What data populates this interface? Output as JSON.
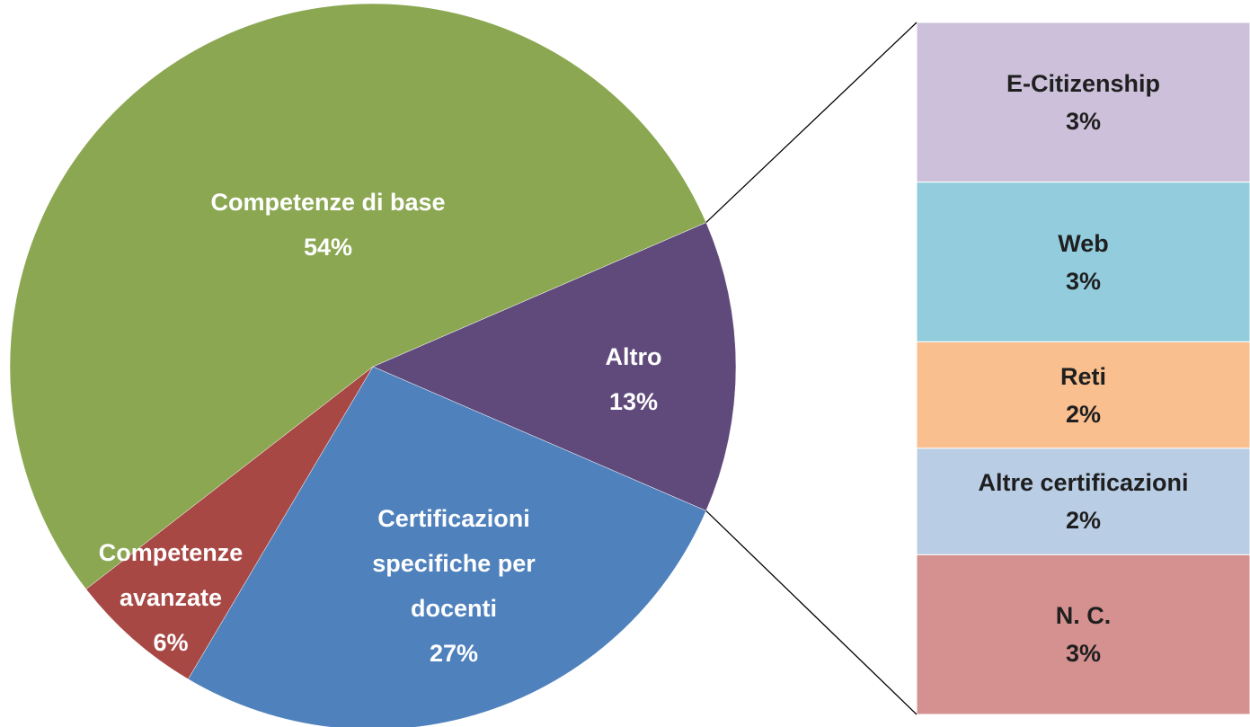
{
  "chart_data": {
    "type": "pie-of-bar",
    "categories": [
      "Altro",
      "Certificazioni specifiche per docenti",
      "Competenze avanzate",
      "Competenze di base"
    ],
    "values": [
      13,
      27,
      6,
      54
    ],
    "value_labels": [
      "13%",
      "27%",
      "6%",
      "54%"
    ],
    "colors": [
      "#604a7b",
      "#4f81bd",
      "#a84845",
      "#8ba752"
    ],
    "bar": {
      "categories": [
        "E-Citizenship",
        "Web",
        "Reti",
        "Altre certificazioni",
        "N. C."
      ],
      "values": [
        3,
        3,
        2,
        2,
        3
      ],
      "value_labels": [
        "3%",
        "3%",
        "2%",
        "2%",
        "3%"
      ],
      "colors": [
        "#ccc0da",
        "#93cddd",
        "#fabf8f",
        "#b9cde5",
        "#d49190"
      ]
    }
  }
}
